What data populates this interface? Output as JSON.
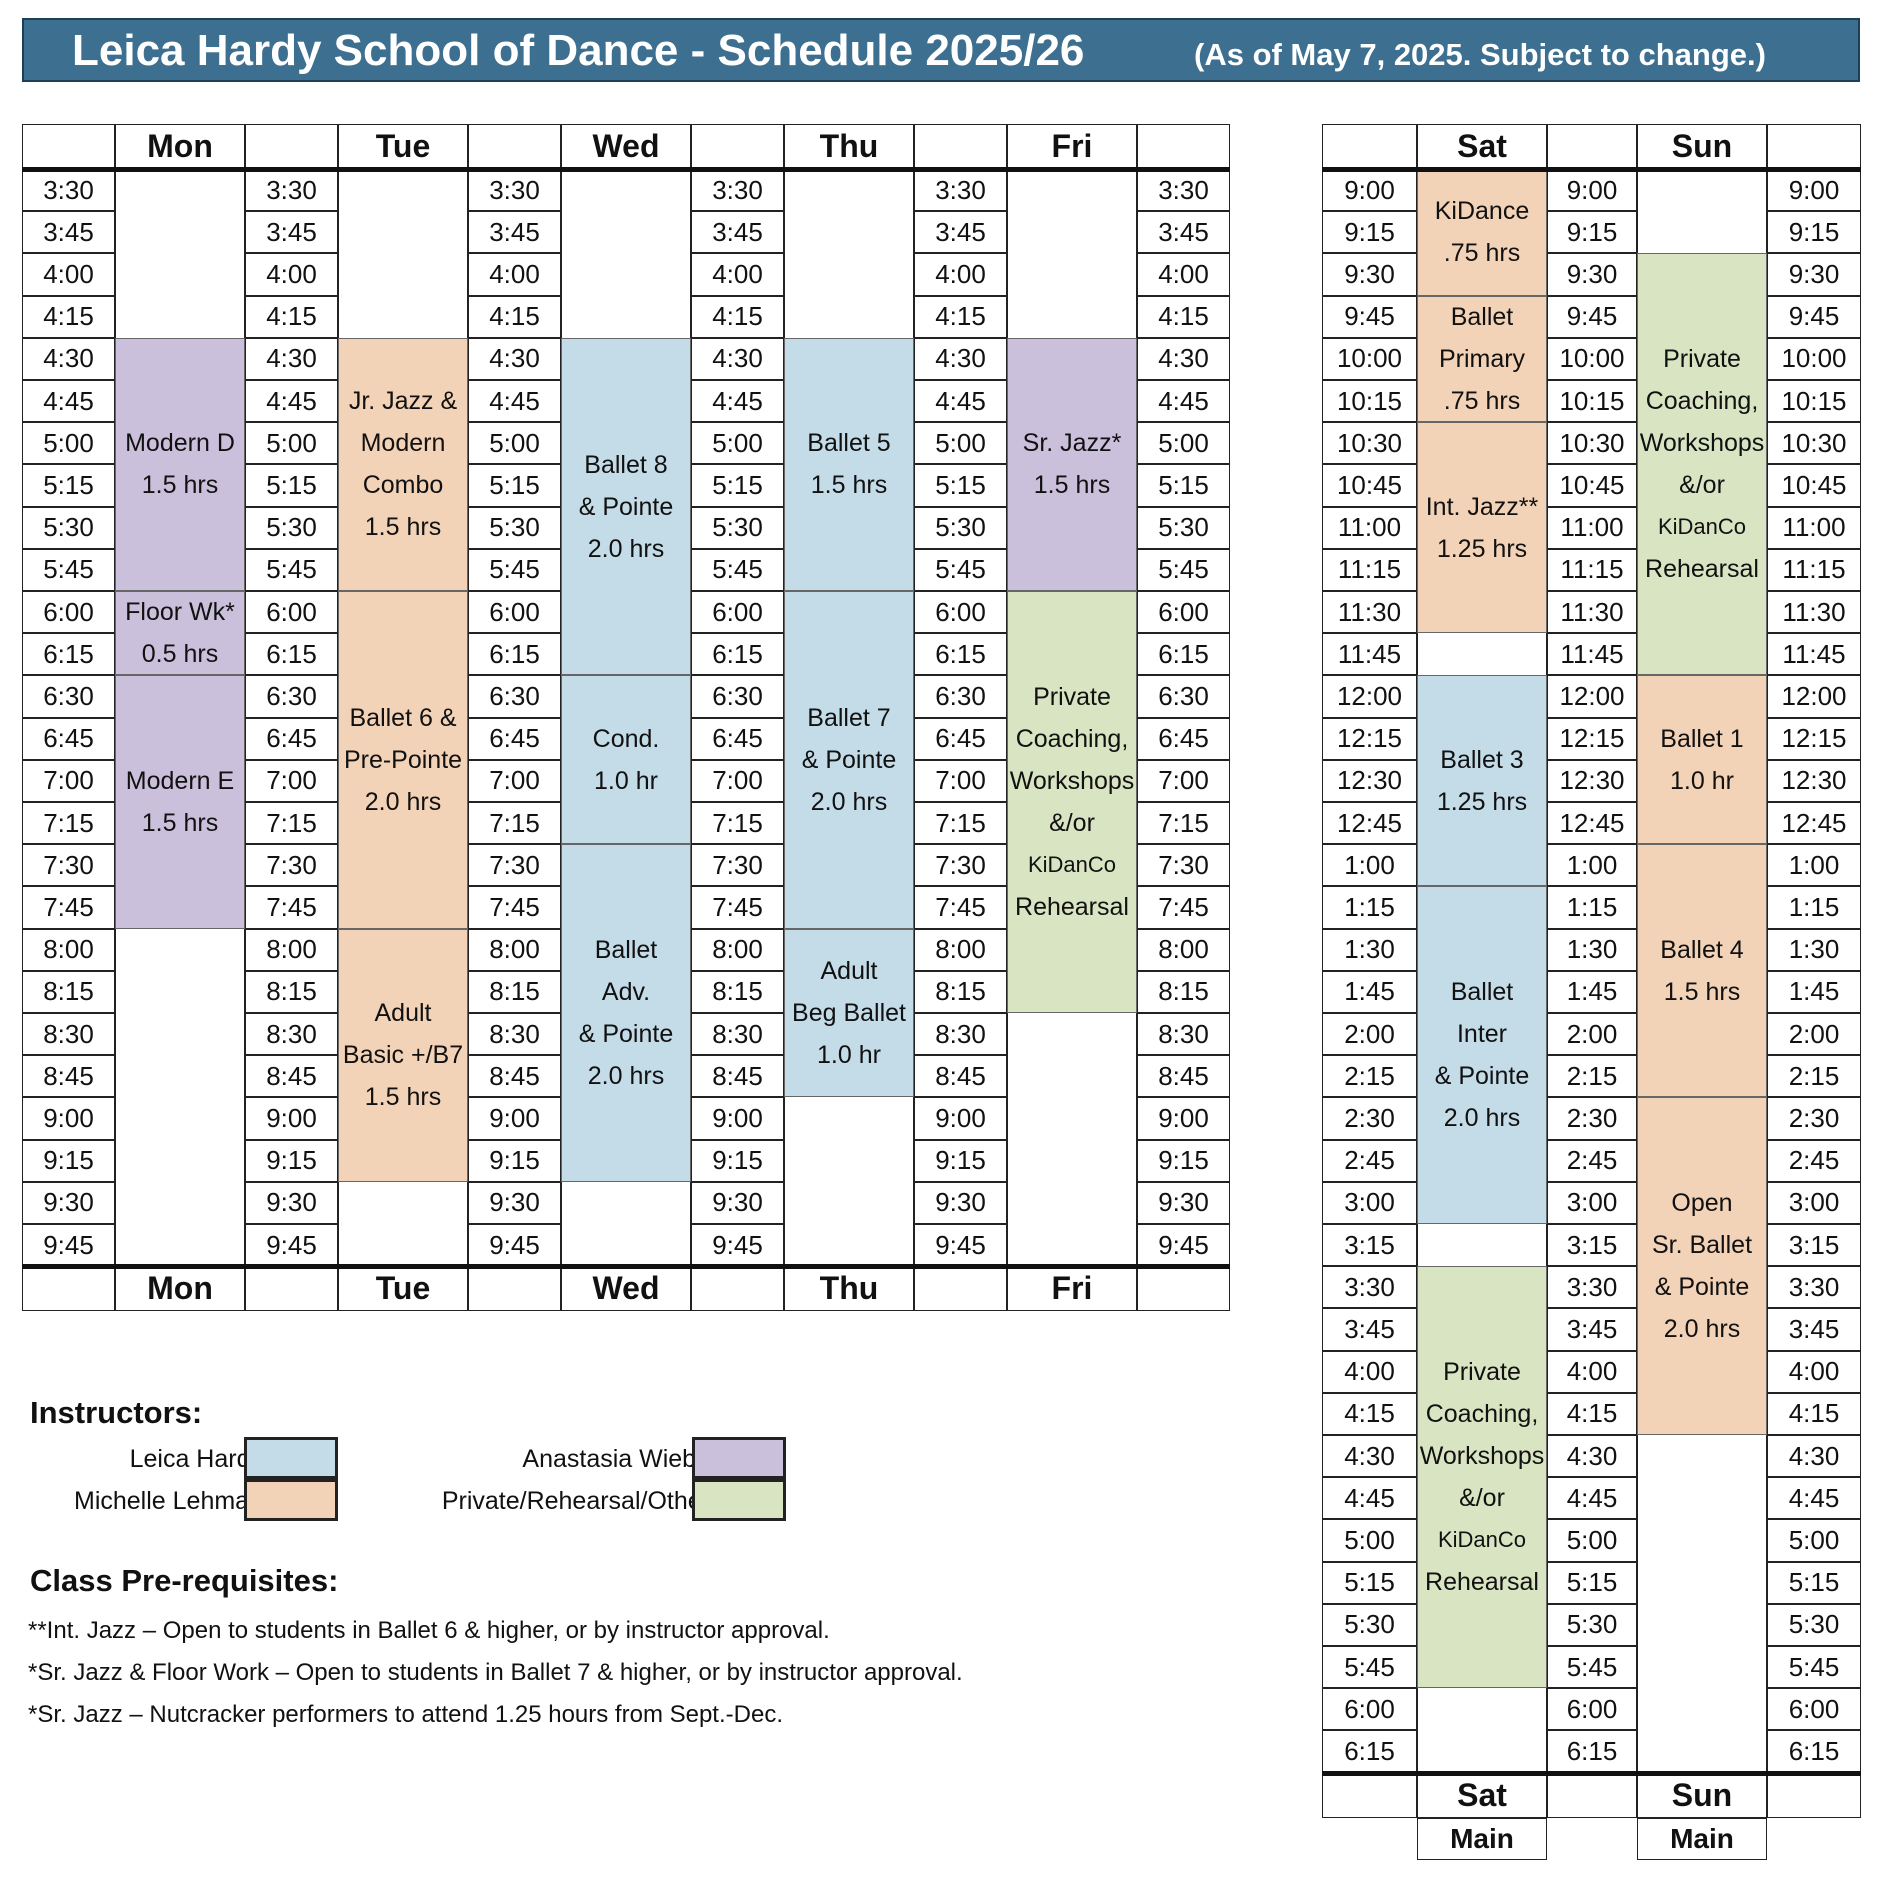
{
  "header": {
    "title": "Leica Hardy School of Dance - Schedule 2025/26",
    "note": "(As of May 7, 2025. Subject to change.)"
  },
  "colors": {
    "leica": "#c4dce8",
    "michelle": "#f3d3b7",
    "anastasia": "#cbc0dc",
    "private": "#d9e4c2",
    "banner": "#3d6f90"
  },
  "weekday": {
    "days": [
      "Mon",
      "Tue",
      "Wed",
      "Thu",
      "Fri"
    ],
    "times": [
      "3:30",
      "3:45",
      "4:00",
      "4:15",
      "4:30",
      "4:45",
      "5:00",
      "5:15",
      "5:30",
      "5:45",
      "6:00",
      "6:15",
      "6:30",
      "6:45",
      "7:00",
      "7:15",
      "7:30",
      "7:45",
      "8:00",
      "8:15",
      "8:30",
      "8:45",
      "9:00",
      "9:15",
      "9:30",
      "9:45"
    ],
    "classes": [
      {
        "day": 0,
        "start": 4,
        "span": 6,
        "color": "anastasia",
        "lines": [
          "Modern D",
          "1.5 hrs"
        ]
      },
      {
        "day": 0,
        "start": 10,
        "span": 2,
        "color": "anastasia",
        "lines": [
          "Floor Wk*",
          "0.5 hrs"
        ]
      },
      {
        "day": 0,
        "start": 12,
        "span": 6,
        "color": "anastasia",
        "lines": [
          "Modern E",
          "1.5 hrs"
        ]
      },
      {
        "day": 1,
        "start": 4,
        "span": 6,
        "color": "michelle",
        "lines": [
          "Jr. Jazz &",
          "Modern",
          "Combo",
          "1.5 hrs"
        ]
      },
      {
        "day": 1,
        "start": 10,
        "span": 8,
        "color": "michelle",
        "lines": [
          "Ballet 6 &",
          "Pre-Pointe",
          "2.0 hrs"
        ]
      },
      {
        "day": 1,
        "start": 18,
        "span": 6,
        "color": "michelle",
        "lines": [
          "Adult",
          "Basic +/B7",
          "1.5 hrs"
        ]
      },
      {
        "day": 2,
        "start": 4,
        "span": 8,
        "color": "leica",
        "lines": [
          "Ballet 8",
          "& Pointe",
          "2.0 hrs"
        ]
      },
      {
        "day": 2,
        "start": 12,
        "span": 4,
        "color": "leica",
        "lines": [
          "Cond.",
          "1.0 hr"
        ]
      },
      {
        "day": 2,
        "start": 16,
        "span": 8,
        "color": "leica",
        "lines": [
          "Ballet",
          "Adv.",
          "& Pointe",
          "2.0 hrs"
        ]
      },
      {
        "day": 3,
        "start": 4,
        "span": 6,
        "color": "leica",
        "lines": [
          "Ballet 5",
          "1.5 hrs"
        ]
      },
      {
        "day": 3,
        "start": 10,
        "span": 8,
        "color": "leica",
        "lines": [
          "Ballet 7",
          "& Pointe",
          "2.0 hrs"
        ]
      },
      {
        "day": 3,
        "start": 18,
        "span": 4,
        "color": "leica",
        "lines": [
          "Adult",
          "Beg Ballet",
          "1.0  hr"
        ]
      },
      {
        "day": 4,
        "start": 4,
        "span": 6,
        "color": "anastasia",
        "lines": [
          "Sr. Jazz*",
          "1.5 hrs"
        ]
      },
      {
        "day": 4,
        "start": 10,
        "span": 10,
        "color": "private",
        "lines": [
          "Private",
          "Coaching,",
          "Workshops",
          "&/or",
          "KiDanCo",
          "Rehearsal"
        ]
      }
    ]
  },
  "weekend": {
    "days": [
      "Sat",
      "Sun"
    ],
    "footer_label": "Main",
    "times": [
      "9:00",
      "9:15",
      "9:30",
      "9:45",
      "10:00",
      "10:15",
      "10:30",
      "10:45",
      "11:00",
      "11:15",
      "11:30",
      "11:45",
      "12:00",
      "12:15",
      "12:30",
      "12:45",
      "1:00",
      "1:15",
      "1:30",
      "1:45",
      "2:00",
      "2:15",
      "2:30",
      "2:45",
      "3:00",
      "3:15",
      "3:30",
      "3:45",
      "4:00",
      "4:15",
      "4:30",
      "4:45",
      "5:00",
      "5:15",
      "5:30",
      "5:45",
      "6:00",
      "6:15"
    ],
    "classes": [
      {
        "day": 0,
        "start": 0,
        "span": 3,
        "color": "michelle",
        "lines": [
          "KiDance",
          ".75 hrs"
        ]
      },
      {
        "day": 0,
        "start": 3,
        "span": 3,
        "color": "michelle",
        "lines": [
          "Ballet",
          "Primary",
          ".75 hrs"
        ]
      },
      {
        "day": 0,
        "start": 6,
        "span": 5,
        "color": "michelle",
        "lines": [
          "Int. Jazz**",
          "1.25 hrs"
        ]
      },
      {
        "day": 0,
        "start": 12,
        "span": 5,
        "color": "leica",
        "lines": [
          "Ballet 3",
          "1.25 hrs"
        ]
      },
      {
        "day": 0,
        "start": 17,
        "span": 8,
        "color": "leica",
        "lines": [
          "Ballet",
          "Inter",
          "& Pointe",
          "2.0 hrs"
        ]
      },
      {
        "day": 0,
        "start": 26,
        "span": 10,
        "color": "private",
        "lines": [
          "Private",
          "Coaching,",
          "Workshops",
          "&/or",
          "KiDanCo",
          "Rehearsal"
        ]
      },
      {
        "day": 1,
        "start": 2,
        "span": 10,
        "color": "private",
        "lines": [
          "Private",
          "Coaching,",
          "Workshops",
          "&/or",
          "KiDanCo",
          "Rehearsal"
        ]
      },
      {
        "day": 1,
        "start": 12,
        "span": 4,
        "color": "michelle",
        "lines": [
          "Ballet 1",
          "1.0 hr"
        ]
      },
      {
        "day": 1,
        "start": 16,
        "span": 6,
        "color": "michelle",
        "lines": [
          "Ballet 4",
          "1.5 hrs"
        ]
      },
      {
        "day": 1,
        "start": 22,
        "span": 8,
        "color": "michelle",
        "lines": [
          "Open",
          "Sr. Ballet",
          "& Pointe",
          "2.0 hrs"
        ]
      }
    ]
  },
  "legend": {
    "title": "Instructors:",
    "items": [
      {
        "label": "Leica Hardy",
        "color": "leica"
      },
      {
        "label": "Michelle Lehman",
        "color": "michelle"
      },
      {
        "label": "Anastasia Wiebe",
        "color": "anastasia"
      },
      {
        "label": "Private/Rehearsal/Other",
        "color": "private"
      }
    ]
  },
  "prereqs": {
    "title": "Class Pre-requisites:",
    "notes": [
      "**Int. Jazz  –  Open to students in Ballet 6 & higher, or by instructor approval.",
      "*Sr. Jazz & Floor Work – Open to students in Ballet 7 & higher, or by instructor approval.",
      "*Sr. Jazz – Nutcracker performers to attend 1.25 hours from Sept.-Dec."
    ]
  }
}
